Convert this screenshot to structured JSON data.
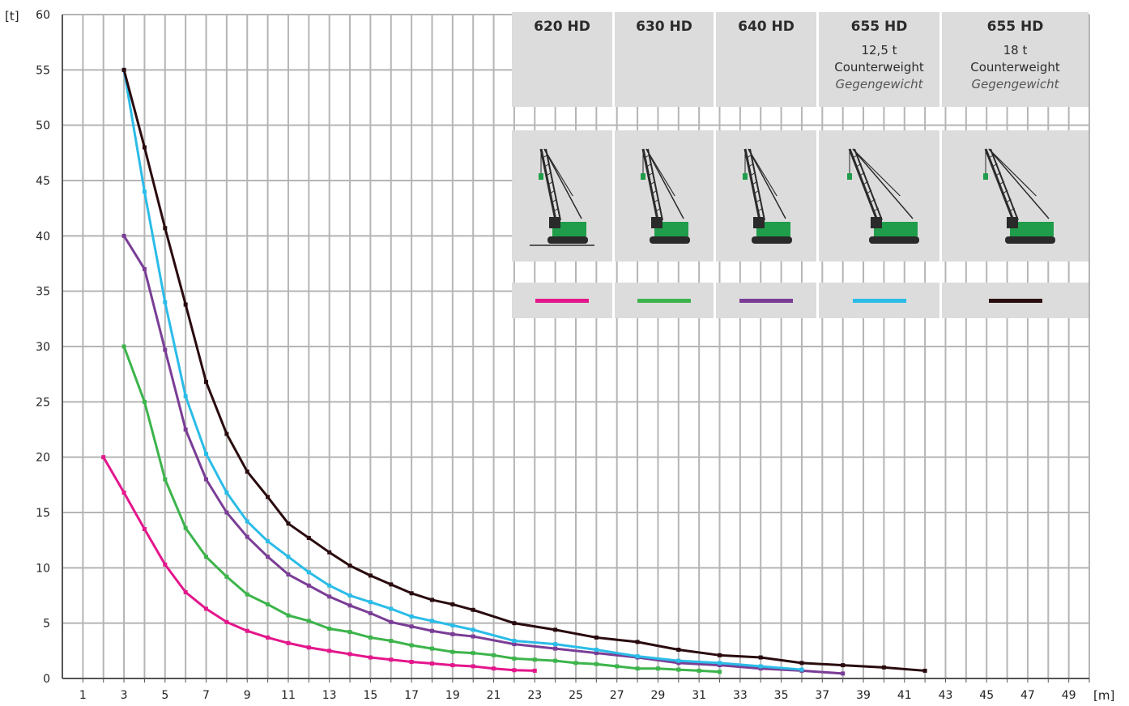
{
  "chart_data": {
    "type": "line",
    "ylabel": "[t]",
    "xlabel": "[m]",
    "xlim": [
      0,
      50
    ],
    "ylim": [
      0,
      60
    ],
    "x_ticks": [
      1,
      3,
      5,
      7,
      9,
      11,
      13,
      15,
      17,
      19,
      21,
      23,
      25,
      27,
      29,
      31,
      33,
      35,
      37,
      39,
      41,
      43,
      45,
      47,
      49
    ],
    "y_ticks": [
      0,
      5,
      10,
      15,
      20,
      25,
      30,
      35,
      40,
      45,
      50,
      55,
      60
    ],
    "grid": true,
    "legend_position": "top-right",
    "series": [
      {
        "name": "620 HD",
        "color": "#e4168c",
        "x": [
          2,
          3,
          4,
          5,
          6,
          7,
          8,
          9,
          10,
          11,
          12,
          13,
          14,
          15,
          16,
          17,
          18,
          19,
          20,
          21,
          22,
          23
        ],
        "y": [
          20,
          16.8,
          13.5,
          10.3,
          7.8,
          6.3,
          5.1,
          4.3,
          3.7,
          3.2,
          2.8,
          2.5,
          2.2,
          1.9,
          1.7,
          1.5,
          1.35,
          1.2,
          1.1,
          0.9,
          0.75,
          0.7
        ]
      },
      {
        "name": "630 HD",
        "color": "#3cb44b",
        "x": [
          3,
          4,
          5,
          6,
          7,
          8,
          9,
          10,
          11,
          12,
          13,
          14,
          15,
          16,
          17,
          18,
          19,
          20,
          21,
          22,
          23,
          24,
          25,
          26,
          27,
          28,
          29,
          30,
          31,
          32
        ],
        "y": [
          30,
          25,
          18,
          13.6,
          11,
          9.2,
          7.6,
          6.7,
          5.7,
          5.2,
          4.5,
          4.2,
          3.7,
          3.4,
          3.0,
          2.7,
          2.4,
          2.3,
          2.1,
          1.8,
          1.7,
          1.6,
          1.4,
          1.3,
          1.1,
          0.9,
          0.9,
          0.8,
          0.7,
          0.6
        ]
      },
      {
        "name": "640 HD",
        "color": "#7a3d96",
        "x": [
          3,
          4,
          5,
          6,
          7,
          8,
          9,
          10,
          11,
          12,
          13,
          14,
          15,
          16,
          17,
          18,
          19,
          20,
          22,
          24,
          26,
          28,
          30,
          32,
          34,
          36,
          38
        ],
        "y": [
          40,
          37,
          29.7,
          22.5,
          18,
          15,
          12.8,
          11,
          9.4,
          8.4,
          7.4,
          6.6,
          5.9,
          5.1,
          4.7,
          4.3,
          4.0,
          3.8,
          3.1,
          2.7,
          2.3,
          1.9,
          1.4,
          1.2,
          0.9,
          0.7,
          0.45
        ]
      },
      {
        "name": "655 HD 12,5 t",
        "color": "#2bbce8",
        "x": [
          3,
          4,
          5,
          6,
          7,
          8,
          9,
          10,
          11,
          12,
          13,
          14,
          15,
          16,
          17,
          18,
          19,
          20,
          22,
          24,
          26,
          28,
          30,
          32,
          34,
          36
        ],
        "y": [
          55,
          44,
          34,
          25.5,
          20.3,
          16.8,
          14.2,
          12.4,
          11,
          9.6,
          8.4,
          7.5,
          6.9,
          6.3,
          5.6,
          5.2,
          4.8,
          4.4,
          3.4,
          3.1,
          2.6,
          2.0,
          1.6,
          1.4,
          1.1,
          0.8
        ]
      },
      {
        "name": "655 HD 18 t",
        "color": "#2a0b0e",
        "x": [
          3,
          4,
          5,
          6,
          7,
          8,
          9,
          10,
          11,
          12,
          13,
          14,
          15,
          16,
          17,
          18,
          19,
          20,
          22,
          24,
          26,
          28,
          30,
          32,
          34,
          36,
          38,
          40,
          42
        ],
        "y": [
          55,
          48,
          40.7,
          33.8,
          26.8,
          22.1,
          18.7,
          16.4,
          14,
          12.7,
          11.4,
          10.2,
          9.3,
          8.5,
          7.7,
          7.1,
          6.7,
          6.2,
          5.0,
          4.4,
          3.7,
          3.3,
          2.6,
          2.1,
          1.9,
          1.4,
          1.2,
          1.0,
          0.7
        ]
      }
    ]
  },
  "legend": {
    "columns": [
      {
        "model": "620 HD",
        "line1": "",
        "line2": "",
        "line3": "",
        "color": "#e4168c",
        "icon": "crawler-crane-620hd-icon"
      },
      {
        "model": "630 HD",
        "line1": "",
        "line2": "",
        "line3": "",
        "color": "#3cb44b",
        "icon": "crawler-crane-630hd-icon"
      },
      {
        "model": "640 HD",
        "line1": "",
        "line2": "",
        "line3": "",
        "color": "#7a3d96",
        "icon": "crawler-crane-640hd-icon"
      },
      {
        "model": "655 HD",
        "line1": "12,5 t",
        "line2": "Counterweight",
        "line3": "Gegengewicht",
        "color": "#2bbce8",
        "icon": "crawler-crane-655hd-icon"
      },
      {
        "model": "655 HD",
        "line1": "18 t",
        "line2": "Counterweight",
        "line3": "Gegengewicht",
        "color": "#2a0b0e",
        "icon": "crawler-crane-655hd-icon"
      }
    ]
  }
}
